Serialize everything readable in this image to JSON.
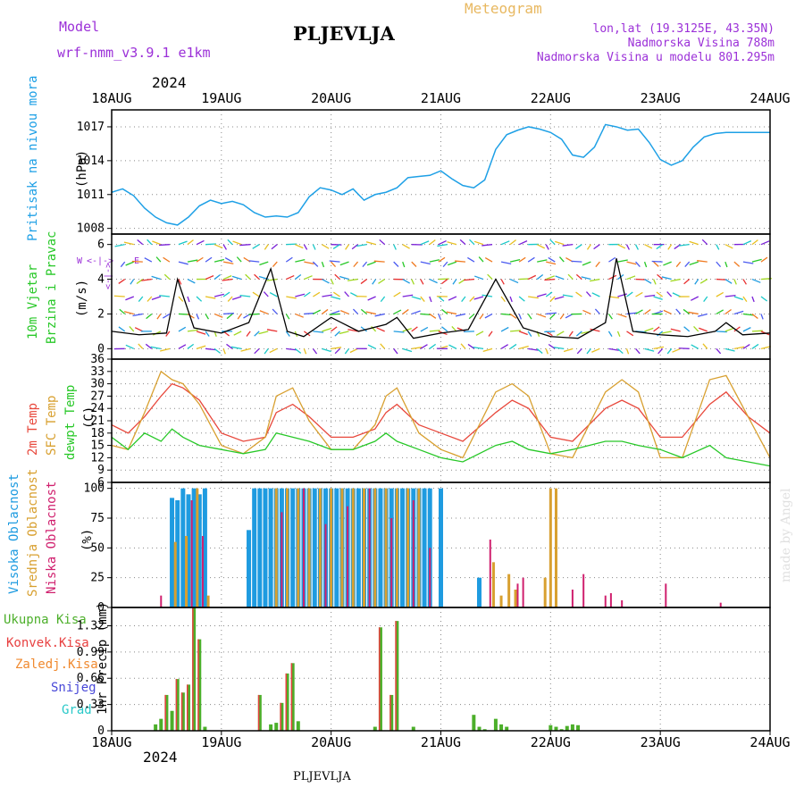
{
  "header": {
    "model_label": "Model",
    "model_name": "wrf-nmm_v3.9.1  e1km",
    "station": "PLJEVLJA",
    "title": "Meteogram",
    "coords": "lon,lat (19.3125E, 43.35N)",
    "altitude": "Nadmorska Visina 788m",
    "model_altitude": "Nadmorska Visina u modelu 801.295m",
    "year": "2024",
    "footer_station": "PLJEVLJA",
    "credit": "made by Angel"
  },
  "colors": {
    "pressure": "#1ea0e6",
    "temp2m": "#e8483c",
    "sfc_temp": "#d8a030",
    "dewpt": "#28c828",
    "high_cloud": "#1e9be0",
    "mid_cloud": "#d8a030",
    "low_cloud": "#d0206e",
    "total_precip": "#4caf2a",
    "conv_precip": "#e84040",
    "grid_precip": "#f08a30",
    "snow": "#4848d8",
    "graupel": "#28c8c8",
    "title_orange": "#e8b860",
    "purple": "#9b30d8"
  },
  "chart_data": [
    {
      "type": "line",
      "panel": "pressure",
      "ylabel_name": "Pritisak na nivou mora",
      "ylabel_unit": "(hPa)",
      "yticks": [
        1008,
        1011,
        1014,
        1017
      ],
      "ylim": [
        1007.5,
        1018.5
      ],
      "x_start": "2024-08-18",
      "x_end": "2024-08-24",
      "xtick_labels": [
        "18AUG",
        "19AUG",
        "20AUG",
        "21AUG",
        "22AUG",
        "23AUG",
        "24AUG"
      ],
      "series": [
        {
          "x": [
            0,
            0.1,
            0.2,
            0.3,
            0.4,
            0.5,
            0.6,
            0.7,
            0.8,
            0.9,
            1.0,
            1.1,
            1.2,
            1.3,
            1.4,
            1.5,
            1.6,
            1.7,
            1.8,
            1.9,
            2.0,
            2.1,
            2.2,
            2.3,
            2.4,
            2.5,
            2.6,
            2.7,
            2.8,
            2.9,
            3.0,
            3.1,
            3.2,
            3.3,
            3.4,
            3.5,
            3.6,
            3.7,
            3.8,
            3.9,
            4.0,
            4.1,
            4.2,
            4.3,
            4.4,
            4.5,
            4.6,
            4.7,
            4.8,
            4.9,
            5.0,
            5.1,
            5.2,
            5.3,
            5.4,
            5.5,
            5.6,
            5.7,
            5.8,
            5.9,
            6.0
          ],
          "values": [
            1011.2,
            1011.5,
            1010.9,
            1009.8,
            1009.0,
            1008.5,
            1008.3,
            1009.0,
            1010.0,
            1010.5,
            1010.2,
            1010.4,
            1010.1,
            1009.4,
            1009.0,
            1009.1,
            1009.0,
            1009.4,
            1010.8,
            1011.6,
            1011.4,
            1011.0,
            1011.5,
            1010.5,
            1011.0,
            1011.2,
            1011.6,
            1012.5,
            1012.6,
            1012.7,
            1013.1,
            1012.4,
            1011.8,
            1011.6,
            1012.3,
            1015.0,
            1016.3,
            1016.7,
            1017.0,
            1016.8,
            1016.5,
            1015.9,
            1014.5,
            1014.3,
            1015.2,
            1017.2,
            1017.0,
            1016.7,
            1016.8,
            1015.6,
            1014.1,
            1013.6,
            1014.0,
            1015.2,
            1016.1,
            1016.4,
            1016.5,
            1016.5,
            1016.5,
            1016.5,
            1016.5
          ]
        }
      ]
    },
    {
      "type": "line",
      "panel": "wind",
      "ylabel_name": "10m Vjetar",
      "ylabel_name2": "Brzina i Pravac",
      "ylabel_unit": "(m/s)",
      "compass_n": "N",
      "compass_w": "W",
      "compass_e": "E",
      "compass_s": "S",
      "compass_arrow": "<-|->",
      "yticks": [
        0,
        2,
        4,
        6
      ],
      "ylim": [
        -0.6,
        6.6
      ],
      "series": [
        {
          "name": "speed",
          "color": "#000000",
          "x": [
            0,
            0.25,
            0.5,
            0.6,
            0.75,
            1.0,
            1.25,
            1.45,
            1.6,
            1.75,
            2.0,
            2.25,
            2.5,
            2.6,
            2.75,
            3.0,
            3.25,
            3.5,
            3.75,
            4.0,
            4.25,
            4.5,
            4.6,
            4.75,
            5.0,
            5.25,
            5.5,
            5.6,
            5.75,
            6.0
          ],
          "values": [
            1.0,
            0.8,
            0.9,
            4.0,
            1.2,
            0.9,
            1.5,
            4.6,
            1.0,
            0.7,
            1.8,
            1.0,
            1.4,
            1.8,
            0.6,
            0.9,
            1.1,
            4.0,
            1.2,
            0.7,
            0.6,
            1.5,
            5.2,
            1.0,
            0.8,
            0.7,
            1.0,
            1.5,
            0.8,
            0.9
          ]
        }
      ]
    },
    {
      "type": "line",
      "panel": "temperature",
      "ylabel_t2": "2m Temp",
      "ylabel_sfc": "SFC Temp",
      "ylabel_dew": "dewpt Temp",
      "ylabel_unit": "(C)",
      "yticks": [
        6,
        9,
        12,
        15,
        18,
        21,
        24,
        27,
        30,
        33,
        36
      ],
      "ylim": [
        6,
        36
      ],
      "series": [
        {
          "name": "2m Temp",
          "x": [
            0,
            0.15,
            0.3,
            0.45,
            0.55,
            0.65,
            0.8,
            1.0,
            1.2,
            1.4,
            1.5,
            1.65,
            1.8,
            2.0,
            2.2,
            2.4,
            2.5,
            2.6,
            2.8,
            3.0,
            3.2,
            3.5,
            3.65,
            3.8,
            4.0,
            4.2,
            4.5,
            4.65,
            4.8,
            5.0,
            5.2,
            5.45,
            5.6,
            5.8,
            6.0
          ],
          "values": [
            20,
            18,
            22,
            27,
            30,
            29,
            26,
            18,
            16,
            17,
            23,
            25,
            22,
            17,
            17,
            19,
            23,
            25,
            20,
            18,
            16,
            23,
            26,
            24,
            17,
            16,
            24,
            26,
            24,
            17,
            17,
            25,
            28,
            22,
            18
          ]
        },
        {
          "name": "SFC Temp",
          "x": [
            0,
            0.15,
            0.3,
            0.45,
            0.55,
            0.65,
            0.8,
            1.0,
            1.2,
            1.4,
            1.5,
            1.65,
            1.8,
            2.0,
            2.2,
            2.4,
            2.5,
            2.6,
            2.8,
            3.0,
            3.2,
            3.5,
            3.65,
            3.8,
            4.0,
            4.2,
            4.5,
            4.65,
            4.8,
            5.0,
            5.2,
            5.45,
            5.6,
            5.8,
            6.0
          ],
          "values": [
            15,
            14,
            23,
            33,
            31,
            30,
            25,
            15,
            13,
            17,
            27,
            29,
            21,
            14,
            14,
            20,
            27,
            29,
            18,
            14,
            12,
            28,
            30,
            27,
            13,
            12,
            28,
            31,
            28,
            12,
            12,
            31,
            32,
            22,
            12
          ]
        },
        {
          "name": "dewpt Temp",
          "x": [
            0,
            0.15,
            0.3,
            0.45,
            0.55,
            0.65,
            0.8,
            1.0,
            1.2,
            1.4,
            1.5,
            1.65,
            1.8,
            2.0,
            2.2,
            2.4,
            2.5,
            2.6,
            2.8,
            3.0,
            3.2,
            3.5,
            3.65,
            3.8,
            4.0,
            4.2,
            4.5,
            4.65,
            4.8,
            5.0,
            5.2,
            5.45,
            5.6,
            5.8,
            6.0
          ],
          "values": [
            17,
            14,
            18,
            16,
            19,
            17,
            15,
            14,
            13,
            14,
            18,
            17,
            16,
            14,
            14,
            16,
            18,
            16,
            14,
            12,
            11,
            15,
            16,
            14,
            13,
            14,
            16,
            16,
            15,
            14,
            12,
            15,
            12,
            11,
            10
          ]
        }
      ]
    },
    {
      "type": "bar",
      "panel": "cloud",
      "ylabel_high": "Visoka Oblacnost",
      "ylabel_mid": "Srednja Oblacnost",
      "ylabel_low": "Niska Oblacnost",
      "ylabel_unit": "(%)",
      "yticks": [
        0,
        25,
        50,
        75,
        100
      ],
      "ylim": [
        0,
        105
      ],
      "series": [
        {
          "name": "Visoka Oblacnost",
          "x": [
            0.55,
            0.6,
            0.65,
            0.7,
            0.75,
            0.8,
            0.85,
            1.25,
            1.3,
            1.35,
            1.4,
            1.45,
            1.5,
            1.55,
            1.6,
            1.65,
            1.7,
            1.75,
            1.8,
            1.85,
            1.9,
            1.95,
            2.0,
            2.05,
            2.1,
            2.15,
            2.2,
            2.25,
            2.3,
            2.35,
            2.4,
            2.45,
            2.5,
            2.55,
            2.6,
            2.65,
            2.7,
            2.75,
            2.8,
            2.85,
            2.9,
            3.0,
            3.35
          ],
          "values": [
            92,
            90,
            100,
            95,
            100,
            95,
            100,
            65,
            100,
            100,
            100,
            100,
            100,
            100,
            100,
            100,
            100,
            100,
            100,
            100,
            100,
            100,
            100,
            100,
            100,
            100,
            100,
            100,
            100,
            100,
            100,
            100,
            100,
            100,
            100,
            100,
            100,
            100,
            100,
            100,
            100,
            100,
            25
          ]
        },
        {
          "name": "Srednja Oblacnost",
          "x": [
            0.58,
            0.68,
            0.78,
            0.88,
            1.5,
            1.6,
            1.7,
            1.8,
            1.9,
            2.0,
            2.1,
            2.2,
            2.3,
            2.4,
            2.5,
            2.6,
            2.7,
            2.8,
            3.48,
            3.55,
            3.62,
            3.68,
            3.95,
            4.0,
            4.05
          ],
          "values": [
            55,
            60,
            100,
            10,
            100,
            100,
            100,
            100,
            100,
            100,
            100,
            100,
            100,
            100,
            100,
            100,
            100,
            100,
            38,
            10,
            28,
            15,
            25,
            100,
            100
          ]
        },
        {
          "name": "Niska Oblacnost",
          "x": [
            0.45,
            0.73,
            0.83,
            1.55,
            1.75,
            1.95,
            2.15,
            2.35,
            2.55,
            2.75,
            2.9,
            3.45,
            3.7,
            3.75,
            4.2,
            4.3,
            4.5,
            4.55,
            4.65,
            5.05,
            5.55
          ],
          "values": [
            10,
            90,
            60,
            80,
            100,
            70,
            85,
            100,
            75,
            90,
            50,
            57,
            20,
            25,
            15,
            28,
            10,
            12,
            6,
            20,
            4
          ]
        }
      ]
    },
    {
      "type": "bar",
      "panel": "precipitation",
      "legend_total": "Ukupna Kisa",
      "legend_conv": "Konvek.Kisa",
      "legend_grid": "Zaledj.Kisa",
      "legend_snow": "Snijeg",
      "legend_graupel": "Grad",
      "ylabel": "1hr Precip (mm)",
      "yticks": [
        0,
        0.33,
        0.66,
        0.99,
        1.32
      ],
      "ylim": [
        0,
        1.55
      ],
      "series": [
        {
          "name": "Ukupna Kisa",
          "x": [
            0.4,
            0.45,
            0.5,
            0.55,
            0.6,
            0.65,
            0.7,
            0.75,
            0.8,
            0.85,
            1.35,
            1.45,
            1.5,
            1.55,
            1.6,
            1.65,
            1.7,
            2.4,
            2.45,
            2.55,
            2.6,
            2.75,
            3.3,
            3.35,
            3.4,
            3.5,
            3.55,
            3.6,
            4.0,
            4.05,
            4.1,
            4.15,
            4.2,
            4.25
          ],
          "values": [
            0.08,
            0.15,
            0.45,
            0.25,
            0.65,
            0.48,
            0.58,
            1.55,
            1.15,
            0.05,
            0.45,
            0.08,
            0.1,
            0.35,
            0.72,
            0.85,
            0.12,
            0.05,
            1.3,
            0.45,
            1.38,
            0.05,
            0.2,
            0.05,
            0.02,
            0.15,
            0.08,
            0.05,
            0.07,
            0.05,
            0.02,
            0.06,
            0.08,
            0.07
          ]
        }
      ]
    }
  ]
}
